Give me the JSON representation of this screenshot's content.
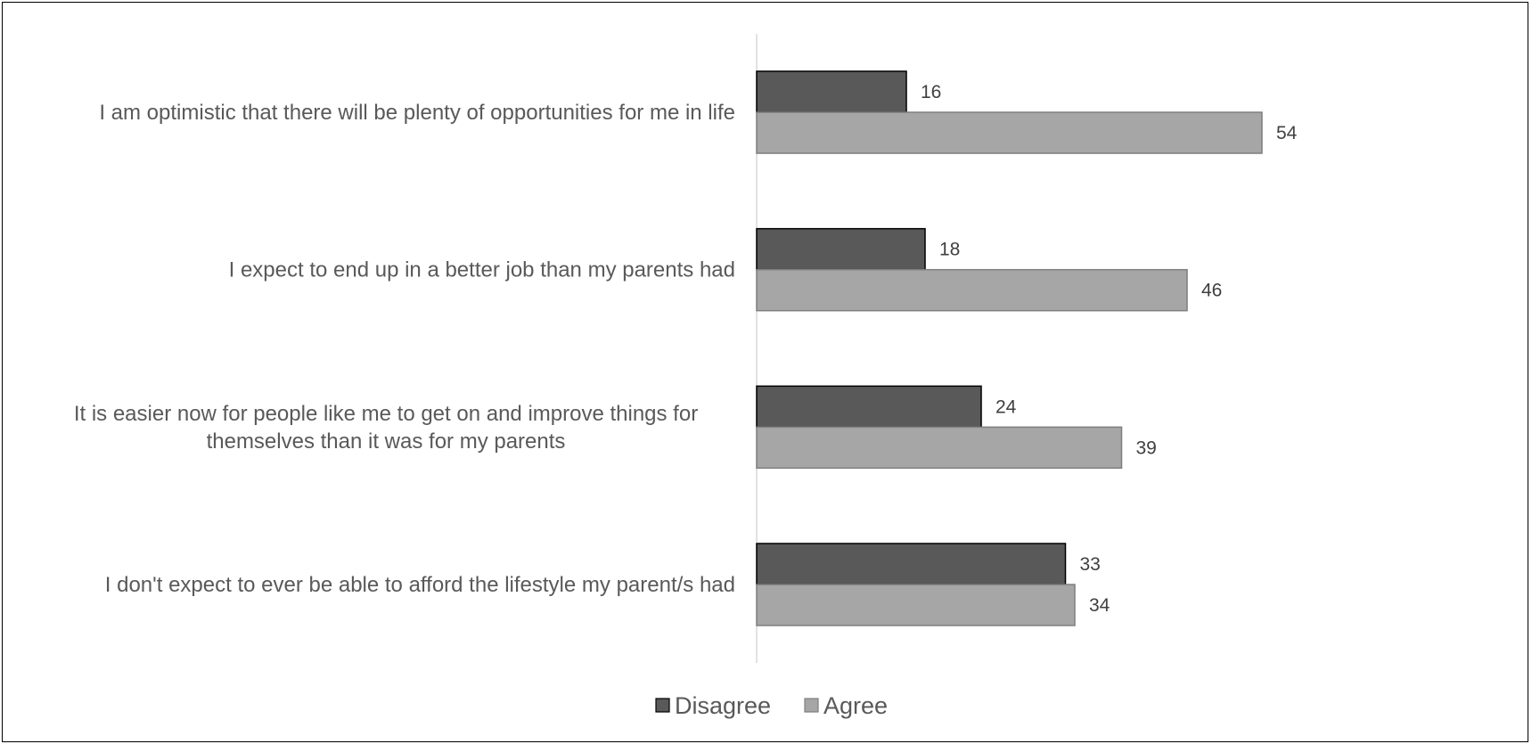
{
  "chart_data": {
    "type": "bar",
    "orientation": "horizontal",
    "categories": [
      "I am optimistic that there will be plenty of opportunities for me in life",
      "I expect to end up in a better job than my parents had",
      "It is easier now for people like me to get on and improve things for themselves than it was for my parents",
      "I don't expect to ever be able to afford the lifestyle my parent/s had"
    ],
    "category_lines": [
      [
        "I am optimistic that there will be plenty of opportunities for me in life"
      ],
      [
        "I expect to end up in a better job than my parents had"
      ],
      [
        "It is easier now for people like me to get on and improve things for",
        "themselves than it was for my parents"
      ],
      [
        "I don't expect to ever be able to afford the lifestyle my parent/s had"
      ]
    ],
    "series": [
      {
        "name": "Disagree",
        "values": [
          16,
          18,
          24,
          33
        ],
        "color": "#595959"
      },
      {
        "name": "Agree",
        "values": [
          54,
          46,
          39,
          34
        ],
        "color": "#a6a6a6"
      }
    ],
    "data_labels": true,
    "xlim": [
      0,
      60
    ],
    "grid": false,
    "legend_position": "bottom"
  }
}
